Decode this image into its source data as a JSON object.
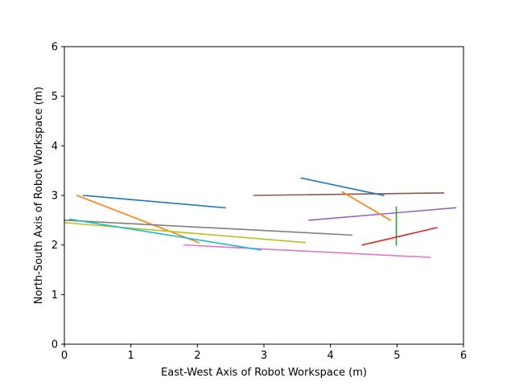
{
  "chart_data": {
    "type": "line",
    "title": "",
    "xlabel": "East-West Axis of Robot Workspace (m)",
    "ylabel": "North-South Axis of Robot Workspace (m)",
    "xlim": [
      0,
      6
    ],
    "ylim": [
      0,
      6
    ],
    "xticks": [
      "0",
      "1",
      "2",
      "3",
      "4",
      "5",
      "6"
    ],
    "yticks": [
      "0",
      "1",
      "2",
      "3",
      "4",
      "5",
      "6"
    ],
    "grid": false,
    "legend": "none",
    "series": [
      {
        "color": "#1f77b4",
        "x": [
          0.29,
          2.42
        ],
        "y": [
          3.0,
          2.75
        ]
      },
      {
        "color": "#ff7f0e",
        "x": [
          0.19,
          2.02
        ],
        "y": [
          3.0,
          2.05
        ]
      },
      {
        "color": "#2ca02c",
        "x": [
          4.99,
          4.99
        ],
        "y": [
          2.76,
          2.0
        ]
      },
      {
        "color": "#d62728",
        "x": [
          4.48,
          5.6
        ],
        "y": [
          2.0,
          2.35
        ]
      },
      {
        "color": "#9467bd",
        "x": [
          3.68,
          5.88
        ],
        "y": [
          2.5,
          2.75
        ]
      },
      {
        "color": "#8c564b",
        "x": [
          2.85,
          5.7
        ],
        "y": [
          3.0,
          3.05
        ]
      },
      {
        "color": "#e377c2",
        "x": [
          1.8,
          5.5
        ],
        "y": [
          2.0,
          1.75
        ]
      },
      {
        "color": "#7f7f7f",
        "x": [
          0.0,
          4.32
        ],
        "y": [
          2.5,
          2.2
        ]
      },
      {
        "color": "#bcbd22",
        "x": [
          0.0,
          3.62
        ],
        "y": [
          2.45,
          2.05
        ]
      },
      {
        "color": "#17becf",
        "x": [
          0.08,
          2.95
        ],
        "y": [
          2.52,
          1.9
        ]
      },
      {
        "color": "#1f77b4",
        "x": [
          3.56,
          4.8
        ],
        "y": [
          3.35,
          3.0
        ]
      },
      {
        "color": "#ff7f0e",
        "x": [
          4.18,
          4.9
        ],
        "y": [
          3.07,
          2.5
        ]
      }
    ]
  }
}
